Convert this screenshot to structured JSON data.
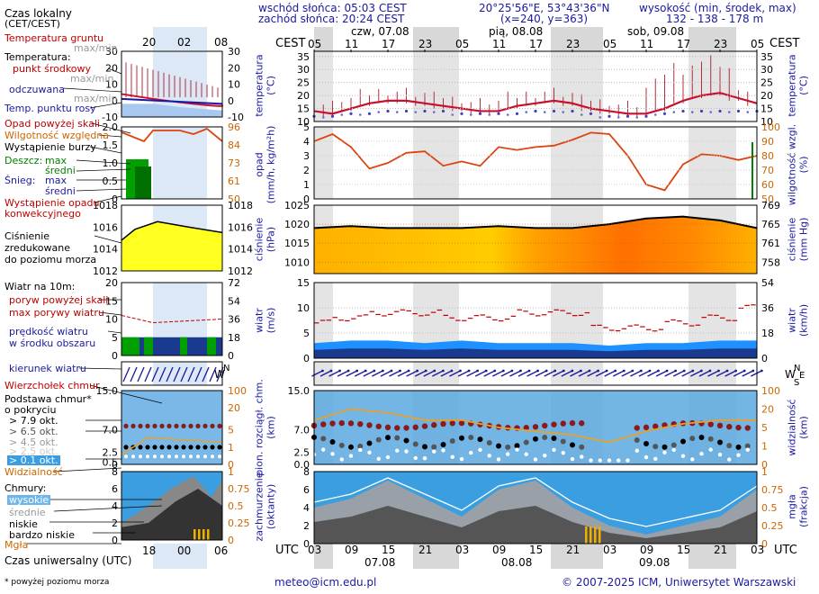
{
  "header": {
    "sunrise": "wschód słońca: 05:03 CEST",
    "sunset": "zachód słońca: 20:24 CEST",
    "coords": "20°25'56\"E, 53°43'36\"N",
    "grid": "(x=240, y=363)",
    "elev_label": "wysokość (min, środek, max)",
    "elev_values": "132 - 138 - 178 m",
    "days": [
      "czw, 07.08",
      "pią, 08.08",
      "sob, 09.08"
    ],
    "top_tz": "CEST",
    "bottom_tz": "UTC",
    "top_hours": [
      "05",
      "11",
      "17",
      "23",
      "05",
      "11",
      "17",
      "23",
      "05",
      "11",
      "17",
      "23",
      "05"
    ],
    "bottom_hours": [
      "03",
      "09",
      "15",
      "21",
      "03",
      "09",
      "15",
      "21",
      "03",
      "09",
      "15",
      "21",
      "03"
    ],
    "bottom_dates": [
      "07.08",
      "08.08",
      "09.08"
    ]
  },
  "legend": {
    "local_time": "Czas lokalny",
    "local_time_tz": "(CET/CEST)",
    "lt_hours": [
      "20",
      "02",
      "08"
    ],
    "soil_temp": "Temperatura gruntu",
    "soil_maxmin": "max/min",
    "temperature": "Temperatura:",
    "mid_point": "punkt środkowy",
    "maxmin": "max/min",
    "spread": "odczuwana",
    "spread_maxmin": "max/min",
    "dew_point": "Temp. punktu rosy",
    "precip_above": "Opad powyżej skali",
    "humidity": "Wilgotność względna",
    "storm": "Wystąpienie burzy",
    "rain": "Deszcz:",
    "rain_max": "max",
    "rain_mean": "średni",
    "snow": "Śnieg:",
    "snow_max": "max",
    "snow_mean": "średni",
    "conv": "Wystąpienie opadu",
    "conv2": "konwekcyjnego",
    "pressure1": "Ciśnienie",
    "pressure2": "zredukowane",
    "pressure3": "do poziomu morza",
    "wind_10m": "Wiatr na 10m:",
    "gust_above": "poryw powyżej skali",
    "gust_max": "max porywy wiatru",
    "wind_speed": "prędkość wiatru",
    "wind_center": "w środku obszaru",
    "wind_dir": "kierunek wiatru",
    "cloud_top": "Wierzchołek chmur",
    "cloud_base": "Podstawa chmur*",
    "cloud_cover": "o pokryciu",
    "okt": [
      "> 7.9 okt.",
      "> 6.5 okt.",
      "> 4.5 okt.",
      "> 2.5 okt.",
      "> 0.1 okt."
    ],
    "visibility": "Widzialność",
    "clouds": "Chmury:",
    "high": "wysokie",
    "middle": "średnie",
    "low": "niskie",
    "very_low": "bardzo niskie",
    "fog": "Mgła",
    "utc_label": "Czas uniwersalny (UTC)",
    "utc_hours": [
      "18",
      "00",
      "06"
    ],
    "footnote": "* powyżej poziomu morza"
  },
  "axis_labels": {
    "temp_l": "temperatura (°C)",
    "temp_r": "temperatura (°C)",
    "precip_l": "opad (mm/h, kg/m²h)",
    "hum_r": "wilgotność wzgl. (%)",
    "press_l": "ciśnienie (hPa)",
    "press_r": "ciśnienie (mm Hg)",
    "wind_l": "wiatr (m/s)",
    "wind_r": "wiatr (km/h)",
    "cb_l": "pion. rozciągł. chm. (km)",
    "vis_r": "widzialność (km)",
    "cloud_l": "zachmurzenie (oktanty)",
    "fog_r": "mgła (frakcja)"
  },
  "footer": {
    "email": "meteo@icm.edu.pl",
    "copyright": "© 2007-2025 ICM, Uniwersytet Warszawski"
  },
  "colors": {
    "temp": "#c8102e",
    "dew": "#4040c0",
    "humidity": "#dd4411",
    "pressure_line": "#000000",
    "wind_fill": "#1e90ff",
    "wind_dark": "#1a3a90",
    "gust": "#c00000",
    "visibility": "#e8a030",
    "cloud_bg": "#3a9ee0"
  },
  "chart_data": [
    {
      "type": "line",
      "title": "temperatura",
      "ylabel": "°C",
      "ylim": [
        10,
        37
      ],
      "x_hours": [
        0,
        3,
        6,
        9,
        12,
        15,
        18,
        21,
        24,
        27,
        30,
        33,
        36,
        39,
        42,
        45,
        48,
        51,
        54,
        57,
        60,
        63,
        66,
        69,
        72
      ],
      "series": [
        {
          "name": "punkt środkowy",
          "values": [
            14,
            13,
            15,
            17,
            18,
            18,
            17,
            16,
            15,
            14,
            14,
            16,
            17,
            18,
            17,
            15,
            14,
            13,
            13,
            15,
            18,
            20,
            21,
            19,
            17
          ]
        },
        {
          "name": "Temp. punktu rosy",
          "values": [
            12,
            12,
            13,
            13,
            14,
            14,
            14,
            14,
            13,
            13,
            13,
            13,
            14,
            14,
            14,
            13,
            12,
            12,
            12,
            13,
            14,
            14,
            14,
            14,
            14
          ]
        }
      ]
    },
    {
      "type": "line",
      "title": "opad / wilgotność",
      "ylim_precip": [
        0,
        5
      ],
      "ylim_humidity": [
        50,
        100
      ],
      "x_hours": [
        0,
        3,
        6,
        9,
        12,
        15,
        18,
        21,
        24,
        27,
        30,
        33,
        36,
        39,
        42,
        45,
        48,
        51,
        54,
        57,
        60,
        63,
        66,
        69,
        72
      ],
      "series": [
        {
          "name": "Wilgotność względna",
          "values": [
            90,
            95,
            86,
            71,
            75,
            82,
            83,
            73,
            76,
            73,
            86,
            84,
            86,
            87,
            91,
            96,
            95,
            80,
            60,
            56,
            74,
            81,
            80,
            77,
            80
          ]
        }
      ]
    },
    {
      "type": "area",
      "title": "ciśnienie",
      "ylabel": "hPa",
      "ylim": [
        1007,
        1025
      ],
      "x_hours": [
        0,
        6,
        12,
        18,
        24,
        30,
        36,
        42,
        48,
        54,
        60,
        66,
        72
      ],
      "series": [
        {
          "name": "Ciśnienie",
          "values": [
            1019,
            1019.5,
            1019,
            1019,
            1019,
            1019.5,
            1019,
            1019,
            1020,
            1021.5,
            1022,
            1021,
            1019
          ]
        }
      ]
    },
    {
      "type": "area",
      "title": "wiatr",
      "ylabel": "m/s",
      "ylim": [
        0,
        15
      ],
      "x_hours": [
        0,
        6,
        12,
        18,
        24,
        30,
        36,
        42,
        48,
        54,
        60,
        66,
        72
      ],
      "series": [
        {
          "name": "prędkość wiatru",
          "values": [
            3,
            3.5,
            3.5,
            3,
            3.5,
            3,
            3,
            3,
            2.5,
            3,
            3,
            3.5,
            3.5
          ]
        },
        {
          "name": "max porywy wiatru",
          "values": [
            7,
            8,
            9,
            9,
            8,
            8,
            9,
            9,
            6,
            6,
            7,
            8,
            10
          ]
        }
      ]
    },
    {
      "type": "scatter",
      "title": "podstawa chmur",
      "ylabel": "km",
      "ylim": [
        0,
        15
      ],
      "series": [
        {
          "name": "Widzialność",
          "values": [
            60,
            75,
            70,
            60,
            60,
            50,
            45,
            40,
            30,
            45,
            55,
            60,
            60
          ]
        }
      ]
    },
    {
      "type": "area",
      "title": "zachmurzenie",
      "ylabel": "oktanty",
      "ylim": [
        0,
        8
      ],
      "series": [
        {
          "name": "niskie",
          "values": [
            4,
            5,
            7,
            5,
            3,
            6,
            7,
            4,
            2,
            1,
            2,
            3,
            6
          ]
        },
        {
          "name": "Mgła",
          "values": [
            0,
            0,
            0,
            0,
            0,
            0,
            0,
            0.2,
            0.3,
            0,
            0,
            0,
            0
          ]
        }
      ]
    }
  ]
}
